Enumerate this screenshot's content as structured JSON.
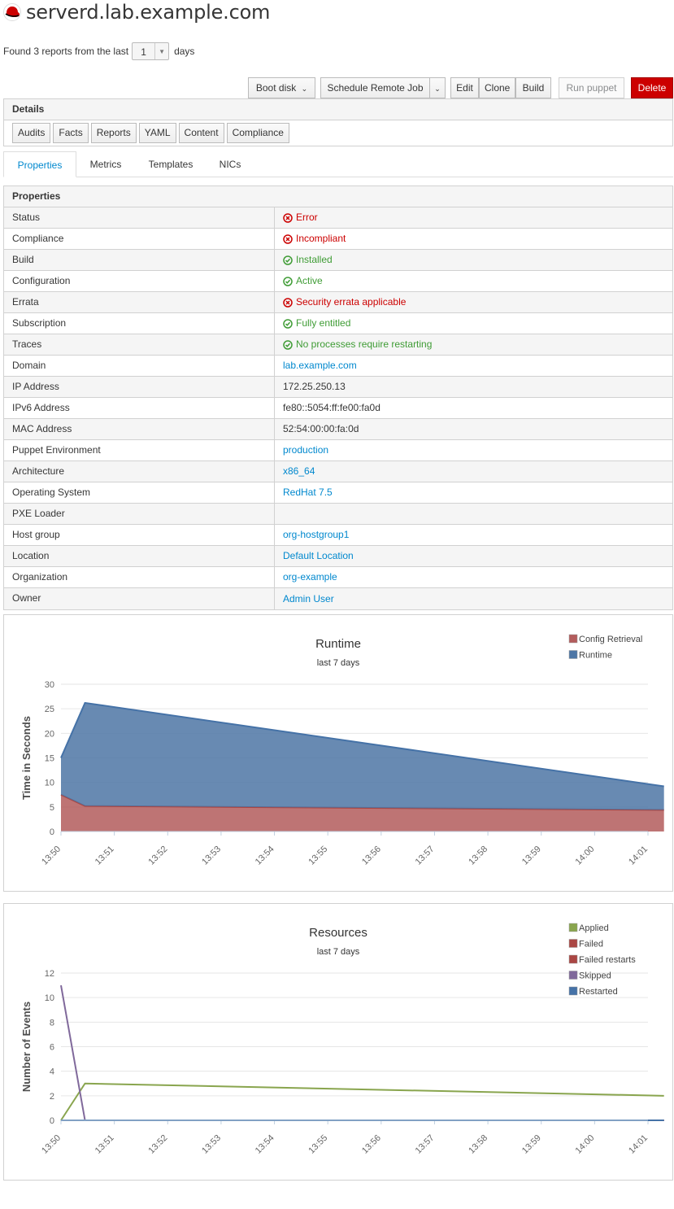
{
  "host": {
    "name": "serverd.lab.example.com"
  },
  "reports": {
    "prefix": "Found 3 reports from the last",
    "days_value": "1",
    "suffix": "days"
  },
  "toolbar": {
    "boot_disk": "Boot disk",
    "schedule_remote_job": "Schedule Remote Job",
    "edit": "Edit",
    "clone": "Clone",
    "build": "Build",
    "run_puppet": "Run puppet",
    "delete": "Delete",
    "delete_color": "#cc0000"
  },
  "details": {
    "title": "Details",
    "buttons": [
      "Audits",
      "Facts",
      "Reports",
      "YAML",
      "Content",
      "Compliance"
    ]
  },
  "tabs": [
    "Properties",
    "Metrics",
    "Templates",
    "NICs"
  ],
  "active_tab": "Properties",
  "properties": {
    "title": "Properties",
    "rows": [
      {
        "key": "Status",
        "value": "Error",
        "kind": "err"
      },
      {
        "key": "Compliance",
        "value": "Incompliant",
        "kind": "err"
      },
      {
        "key": "Build",
        "value": "Installed",
        "kind": "ok"
      },
      {
        "key": "Configuration",
        "value": "Active",
        "kind": "ok"
      },
      {
        "key": "Errata",
        "value": "Security errata applicable",
        "kind": "err"
      },
      {
        "key": "Subscription",
        "value": "Fully entitled",
        "kind": "ok"
      },
      {
        "key": "Traces",
        "value": "No processes require restarting",
        "kind": "ok"
      },
      {
        "key": "Domain",
        "value": "lab.example.com",
        "kind": "link"
      },
      {
        "key": "IP Address",
        "value": "172.25.250.13",
        "kind": "text"
      },
      {
        "key": "IPv6 Address",
        "value": "fe80::5054:ff:fe00:fa0d",
        "kind": "text"
      },
      {
        "key": "MAC Address",
        "value": "52:54:00:00:fa:0d",
        "kind": "text"
      },
      {
        "key": "Puppet Environment",
        "value": "production",
        "kind": "link"
      },
      {
        "key": "Architecture",
        "value": "x86_64",
        "kind": "link"
      },
      {
        "key": "Operating System",
        "value": "RedHat 7.5",
        "kind": "link"
      },
      {
        "key": "PXE Loader",
        "value": "",
        "kind": "text"
      },
      {
        "key": "Host group",
        "value": "org-hostgroup1",
        "kind": "link"
      },
      {
        "key": "Location",
        "value": "Default Location",
        "kind": "link"
      },
      {
        "key": "Organization",
        "value": "org-example",
        "kind": "link"
      },
      {
        "key": "Owner",
        "value": "Admin User",
        "kind": "link"
      }
    ]
  },
  "colors": {
    "error": "#cc0000",
    "ok": "#3f9c35",
    "link": "#0088ce"
  },
  "chart_data": [
    {
      "type": "area",
      "title": "Runtime",
      "subtitle": "last 7 days",
      "ylabel": "Time in Seconds",
      "ylim": [
        0,
        30
      ],
      "yticks": [
        0,
        5,
        10,
        15,
        20,
        25,
        30
      ],
      "x": [
        0,
        0.45,
        11.3
      ],
      "xticks": [
        "13:50",
        "13:51",
        "13:52",
        "13:53",
        "13:54",
        "13:55",
        "13:56",
        "13:57",
        "13:58",
        "13:59",
        "14:00",
        "14:01"
      ],
      "stacked": true,
      "series": [
        {
          "name": "Config Retrieval",
          "color": "#b35c5c",
          "values": [
            7.5,
            5.2,
            4.4
          ]
        },
        {
          "name": "Runtime",
          "color": "#4d76a5",
          "values": [
            7.5,
            21.0,
            4.8
          ]
        }
      ],
      "legend": [
        "Config Retrieval",
        "Runtime"
      ],
      "legend_position": "top-right"
    },
    {
      "type": "line",
      "title": "Resources",
      "subtitle": "last 7 days",
      "ylabel": "Number of Events",
      "ylim": [
        0,
        12
      ],
      "yticks": [
        0,
        2,
        4,
        6,
        8,
        10,
        12
      ],
      "x": [
        0,
        0.45,
        11.3
      ],
      "xticks": [
        "13:50",
        "13:51",
        "13:52",
        "13:53",
        "13:54",
        "13:55",
        "13:56",
        "13:57",
        "13:58",
        "13:59",
        "14:00",
        "14:01"
      ],
      "series": [
        {
          "name": "Applied",
          "color": "#89a54e",
          "values": [
            0,
            3,
            2
          ]
        },
        {
          "name": "Failed",
          "color": "#aa4643",
          "values": [
            0,
            0,
            0
          ]
        },
        {
          "name": "Failed restarts",
          "color": "#aa4643",
          "values": [
            0,
            0,
            0
          ]
        },
        {
          "name": "Skipped",
          "color": "#80699b",
          "values": [
            11,
            0,
            0
          ]
        },
        {
          "name": "Restarted",
          "color": "#4572a7",
          "values": [
            0,
            0,
            0
          ]
        }
      ],
      "legend": [
        "Applied",
        "Failed",
        "Failed restarts",
        "Skipped",
        "Restarted"
      ],
      "legend_position": "top-right"
    }
  ]
}
